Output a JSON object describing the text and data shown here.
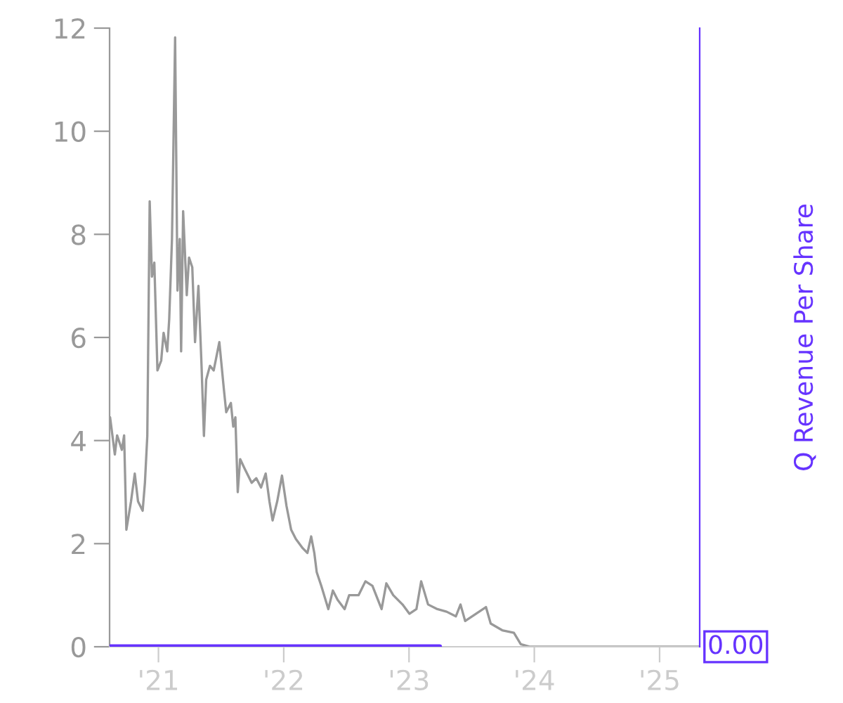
{
  "chart_data": {
    "type": "line",
    "y2label": "Q Revenue Per Share",
    "x": [
      2020.614,
      2020.652,
      2020.67,
      2020.708,
      2020.726,
      2020.744,
      2020.781,
      2020.811,
      2020.837,
      2020.874,
      2020.892,
      2020.911,
      2020.93,
      2020.948,
      2020.967,
      2020.992,
      2021.022,
      2021.041,
      2021.07,
      2021.086,
      2021.108,
      2021.133,
      2021.152,
      2021.17,
      2021.181,
      2021.197,
      2021.226,
      2021.244,
      2021.27,
      2021.292,
      2021.319,
      2021.344,
      2021.363,
      2021.381,
      2021.411,
      2021.441,
      2021.486,
      2021.522,
      2021.541,
      2021.578,
      2021.597,
      2021.614,
      2021.633,
      2021.652,
      2021.689,
      2021.744,
      2021.781,
      2021.819,
      2021.856,
      2021.886,
      2021.911,
      2021.948,
      2021.986,
      2022.022,
      2022.059,
      2022.097,
      2022.152,
      2022.189,
      2022.219,
      2022.244,
      2022.263,
      2022.3,
      2022.356,
      2022.392,
      2022.43,
      2022.486,
      2022.522,
      2022.597,
      2022.652,
      2022.708,
      2022.781,
      2022.819,
      2022.874,
      2022.948,
      2023.003,
      2023.059,
      2023.097,
      2023.152,
      2023.226,
      2023.3,
      2023.374,
      2023.411,
      2023.448,
      2023.614,
      2023.652,
      2023.744,
      2023.837,
      2023.892,
      2023.967,
      2024.5,
      2025.32
    ],
    "series": [
      {
        "color": "#999999",
        "values": [
          4.45,
          3.73,
          4.1,
          3.82,
          4.1,
          2.27,
          2.82,
          3.36,
          2.82,
          2.64,
          3.18,
          4.09,
          8.64,
          7.18,
          7.45,
          5.36,
          5.55,
          6.09,
          5.73,
          6.36,
          7.91,
          11.82,
          6.91,
          7.91,
          5.73,
          8.45,
          6.82,
          7.55,
          7.36,
          5.91,
          7.0,
          5.45,
          4.09,
          5.18,
          5.45,
          5.36,
          5.91,
          5.0,
          4.55,
          4.73,
          4.27,
          4.45,
          3.0,
          3.64,
          3.45,
          3.18,
          3.27,
          3.09,
          3.36,
          2.82,
          2.45,
          2.82,
          3.32,
          2.73,
          2.27,
          2.09,
          1.91,
          1.82,
          2.14,
          1.82,
          1.45,
          1.18,
          0.73,
          1.09,
          0.91,
          0.73,
          1.0,
          1.0,
          1.27,
          1.18,
          0.73,
          1.23,
          1.0,
          0.82,
          0.64,
          0.73,
          1.27,
          0.82,
          0.73,
          0.68,
          0.59,
          0.82,
          0.5,
          0.77,
          0.45,
          0.32,
          0.27,
          0.05,
          0,
          0,
          0
        ]
      },
      {
        "color": "#6633ff",
        "x": [
          2020.614,
          2023.244
        ],
        "values": [
          0,
          0
        ]
      }
    ],
    "xlim": [
      2020.61,
      2025.32
    ],
    "xticks": [
      {
        "value": 2021,
        "label": "'21"
      },
      {
        "value": 2022,
        "label": "'22"
      },
      {
        "value": 2023,
        "label": "'23"
      },
      {
        "value": 2024,
        "label": "'24"
      },
      {
        "value": 2025,
        "label": "'25"
      }
    ],
    "ylim": [
      0,
      12
    ],
    "yticks": [
      0,
      2,
      4,
      6,
      8,
      10,
      12
    ],
    "annotations": [
      "0.00"
    ],
    "grid": false
  }
}
